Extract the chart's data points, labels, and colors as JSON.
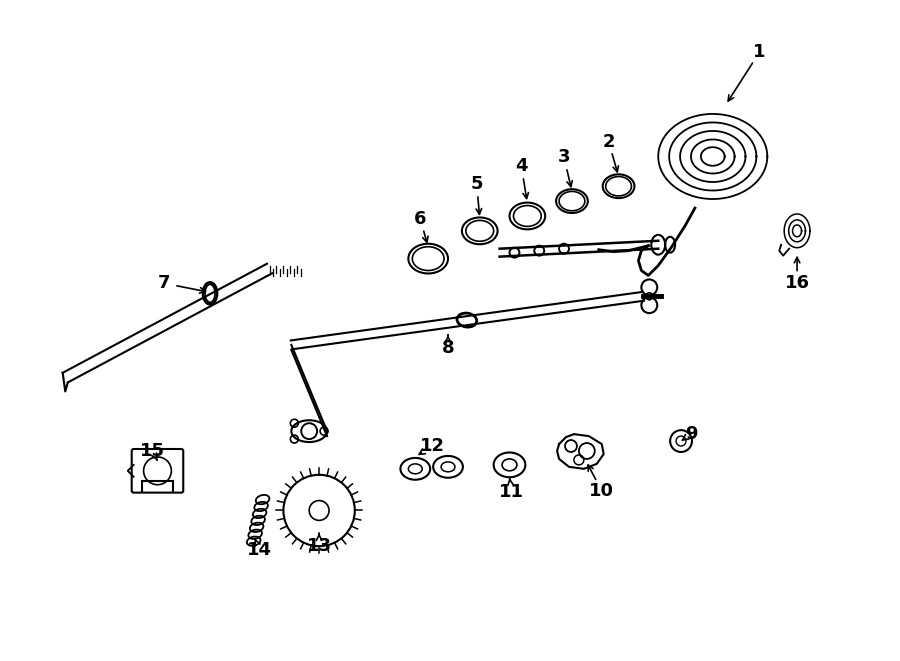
{
  "title": "",
  "bg_color": "#ffffff",
  "line_color": "#000000",
  "figsize": [
    9.0,
    6.61
  ],
  "dpi": 100
}
